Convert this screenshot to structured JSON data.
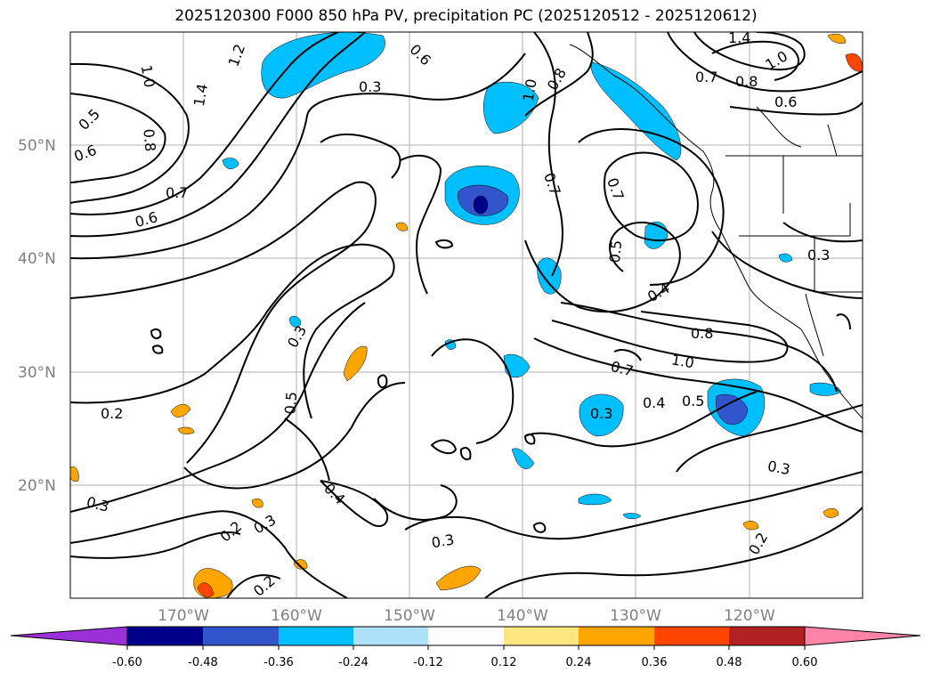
{
  "title": "2025120300 F000 850 hPa PV, precipitation PC (2025120512 - 2025120612)",
  "map": {
    "latitude_labels": [
      "50°N",
      "40°N",
      "30°N",
      "20°N"
    ],
    "longitude_labels": [
      "170°W",
      "160°W",
      "150°W",
      "140°W",
      "130°W",
      "120°W"
    ],
    "contour_labels": [
      "1.4",
      "1.0",
      "0.8",
      "0.7",
      "0.6",
      "1.0",
      "0.5",
      "0.6",
      "0.8",
      "0.7",
      "0.6",
      "1.2",
      "1.4",
      "0.6",
      "0.3",
      "1.0",
      "0.8",
      "0.7",
      "0.7",
      "0.5",
      "0.4",
      "0.3",
      "0.8",
      "1.0",
      "0.7",
      "0.4",
      "0.5",
      "0.3",
      "0.3",
      "0.5",
      "0.2",
      "0.3",
      "0.4",
      "0.3",
      "0.2",
      "0.3",
      "0.2",
      "0.3",
      "0.2"
    ]
  },
  "colorbar": {
    "ticks": [
      "-0.60",
      "-0.48",
      "-0.36",
      "-0.24",
      "-0.12",
      "0.12",
      "0.24",
      "0.36",
      "0.48",
      "0.60"
    ],
    "colors": [
      "#9b30d9",
      "#00008b",
      "#3355cc",
      "#00bfff",
      "#aee0f8",
      "#ffffff",
      "#ffe680",
      "#ffa500",
      "#ff4500",
      "#b22222",
      "#ff85a8"
    ]
  }
}
